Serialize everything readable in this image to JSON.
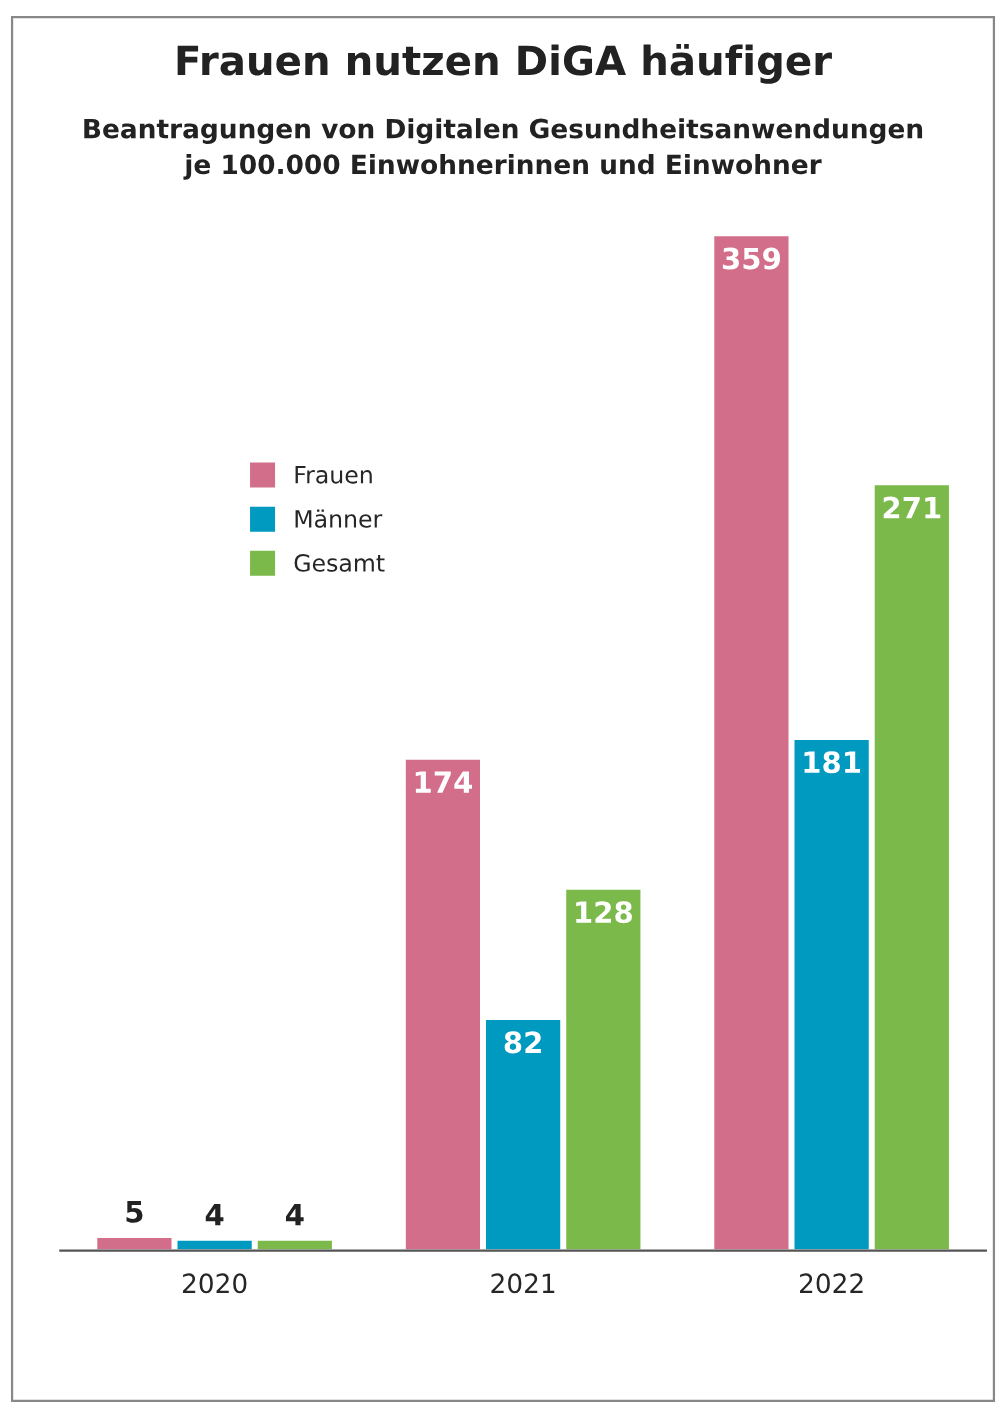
{
  "chart_data": {
    "type": "bar",
    "title": "Frauen nutzen DiGA häufiger",
    "subtitle": "Beantragungen von Digitalen Gesundheitsanwendungen\nje 100.000 Einwohnerinnen und Einwohner",
    "categories": [
      "2020",
      "2021",
      "2022"
    ],
    "series": [
      {
        "name": "Frauen",
        "color": "#d26e8a",
        "values": [
          5,
          174,
          359
        ]
      },
      {
        "name": "Männer",
        "color": "#0099c0",
        "values": [
          4,
          82,
          181
        ]
      },
      {
        "name": "Gesamt",
        "color": "#7bba4a",
        "values": [
          4,
          128,
          271
        ]
      }
    ],
    "data_labels": true,
    "legend": "top left",
    "grid": false,
    "tick_labels": "x"
  }
}
